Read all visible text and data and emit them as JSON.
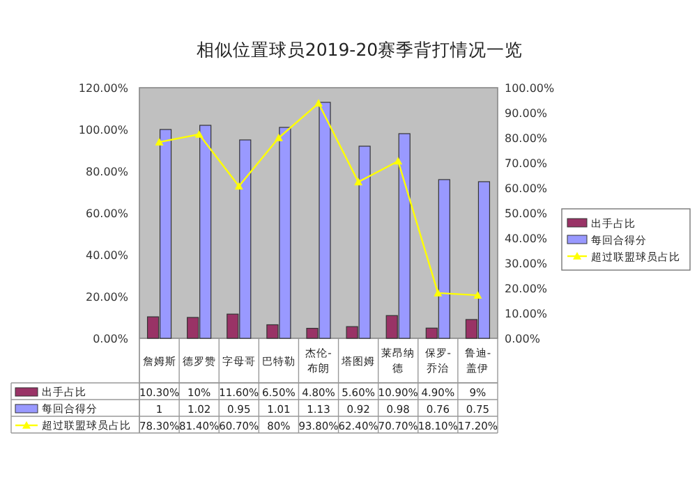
{
  "chart_data": {
    "type": "bar",
    "title": "相似位置球员2019-20赛季背打情况一览",
    "categories": [
      "詹姆斯",
      "德罗赞",
      "字母哥",
      "巴特勒",
      "杰伦-布朗",
      "塔图姆",
      "莱昂纳德",
      "保罗-乔治",
      "鲁迪-盖伊"
    ],
    "series": [
      {
        "name": "出手占比",
        "color": "#993366",
        "values": [
          0.103,
          0.1,
          0.116,
          0.065,
          0.048,
          0.056,
          0.109,
          0.049,
          0.09
        ],
        "value_labels": [
          "10.30%",
          "10%",
          "11.60%",
          "6.50%",
          "4.80%",
          "5.60%",
          "10.90%",
          "4.90%",
          "9%"
        ]
      },
      {
        "name": "每回合得分",
        "color": "#9999ff",
        "values": [
          1,
          1.02,
          0.95,
          1.01,
          1.13,
          0.92,
          0.98,
          0.76,
          0.75
        ],
        "value_labels": [
          "1",
          "1.02",
          "0.95",
          "1.01",
          "1.13",
          "0.92",
          "0.98",
          "0.76",
          "0.75"
        ]
      },
      {
        "name": "超过联盟球员占比",
        "type": "line",
        "axis": "y2",
        "color": "#ffff00",
        "marker": "triangle",
        "values": [
          0.783,
          0.814,
          0.607,
          0.8,
          0.938,
          0.624,
          0.707,
          0.181,
          0.172
        ],
        "value_labels": [
          "78.30%",
          "81.40%",
          "60.70%",
          "80%",
          "93.80%",
          "62.40%",
          "70.70%",
          "18.10%",
          "17.20%"
        ]
      }
    ],
    "ylim": [
      0,
      1.2
    ],
    "yticks": [
      {
        "value": 0,
        "label": "0.00%"
      },
      {
        "value": 0.2,
        "label": "20.00%"
      },
      {
        "value": 0.4,
        "label": "40.00%"
      },
      {
        "value": 0.6,
        "label": "60.00%"
      },
      {
        "value": 0.8,
        "label": "80.00%"
      },
      {
        "value": 1,
        "label": "100.00%"
      },
      {
        "value": 1.2,
        "label": "120.00%"
      }
    ],
    "y2lim": [
      0,
      1
    ],
    "y2ticks": [
      {
        "value": 0,
        "label": "0.00%"
      },
      {
        "value": 0.1,
        "label": "10.00%"
      },
      {
        "value": 0.2,
        "label": "20.00%"
      },
      {
        "value": 0.3,
        "label": "30.00%"
      },
      {
        "value": 0.4,
        "label": "40.00%"
      },
      {
        "value": 0.5,
        "label": "50.00%"
      },
      {
        "value": 0.6,
        "label": "60.00%"
      },
      {
        "value": 0.7,
        "label": "70.00%"
      },
      {
        "value": 0.8,
        "label": "80.00%"
      },
      {
        "value": 0.9,
        "label": "90.00%"
      },
      {
        "value": 1,
        "label": "100.00%"
      }
    ],
    "legend": "right"
  }
}
